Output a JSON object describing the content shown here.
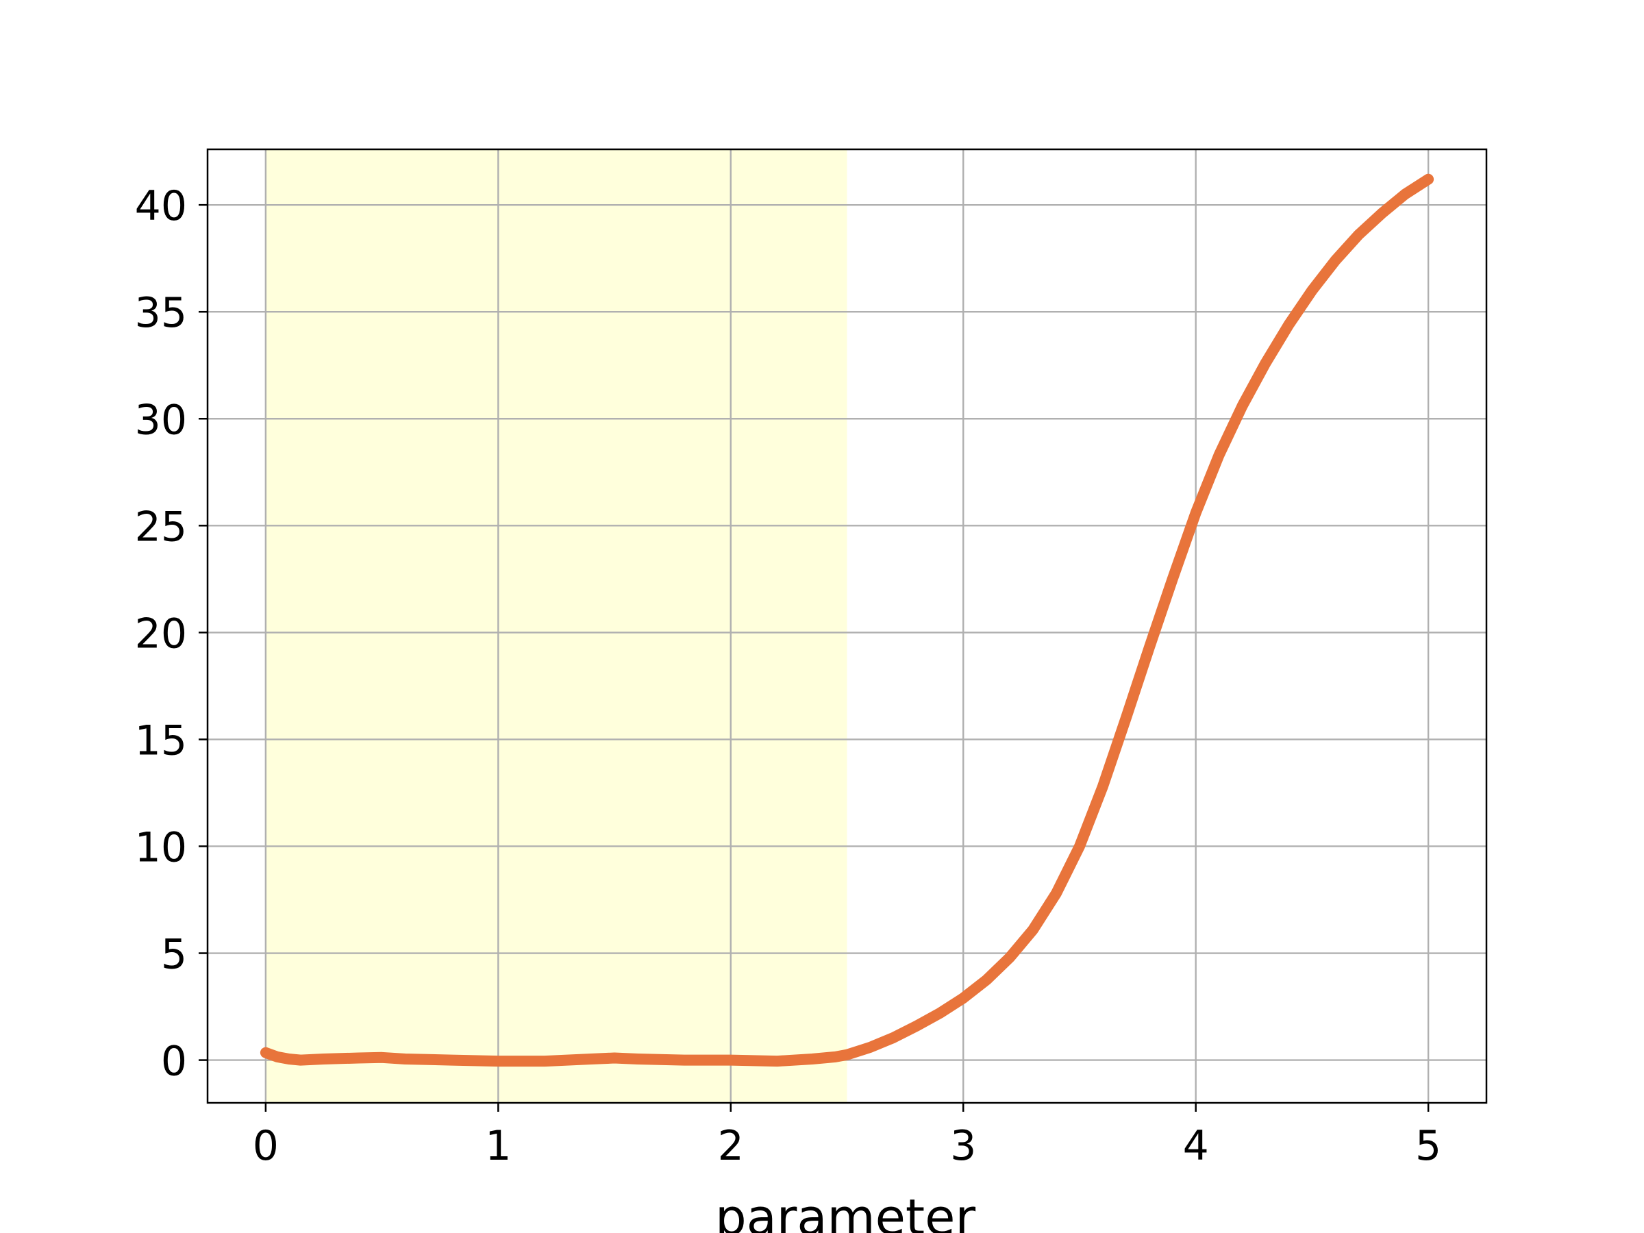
{
  "chart_data": {
    "type": "line",
    "title": "",
    "xlabel": "parameter",
    "ylabel": "",
    "xlim": [
      -0.25,
      5.25
    ],
    "ylim": [
      -2.0,
      42.6
    ],
    "x_ticks": [
      0,
      1,
      2,
      3,
      4,
      5
    ],
    "y_ticks": [
      0,
      5,
      10,
      15,
      20,
      25,
      30,
      35,
      40
    ],
    "grid": true,
    "legend": "none",
    "highlight_region": {
      "x_start": 0,
      "x_end": 2.5,
      "color": "#ffffdc"
    },
    "series": [
      {
        "color": "#e8743b",
        "points": [
          [
            0.0,
            0.35
          ],
          [
            0.05,
            0.15
          ],
          [
            0.1,
            0.05
          ],
          [
            0.15,
            0.0
          ],
          [
            0.25,
            0.05
          ],
          [
            0.4,
            0.1
          ],
          [
            0.5,
            0.12
          ],
          [
            0.6,
            0.05
          ],
          [
            0.8,
            0.0
          ],
          [
            1.0,
            -0.05
          ],
          [
            1.2,
            -0.05
          ],
          [
            1.4,
            0.05
          ],
          [
            1.5,
            0.1
          ],
          [
            1.6,
            0.05
          ],
          [
            1.8,
            0.0
          ],
          [
            2.0,
            0.0
          ],
          [
            2.2,
            -0.05
          ],
          [
            2.35,
            0.05
          ],
          [
            2.45,
            0.15
          ],
          [
            2.5,
            0.25
          ],
          [
            2.6,
            0.6
          ],
          [
            2.7,
            1.05
          ],
          [
            2.8,
            1.6
          ],
          [
            2.9,
            2.2
          ],
          [
            3.0,
            2.9
          ],
          [
            3.1,
            3.75
          ],
          [
            3.2,
            4.8
          ],
          [
            3.3,
            6.1
          ],
          [
            3.4,
            7.8
          ],
          [
            3.5,
            10.0
          ],
          [
            3.6,
            12.8
          ],
          [
            3.7,
            16.0
          ],
          [
            3.8,
            19.3
          ],
          [
            3.9,
            22.5
          ],
          [
            4.0,
            25.6
          ],
          [
            4.1,
            28.3
          ],
          [
            4.2,
            30.6
          ],
          [
            4.3,
            32.6
          ],
          [
            4.4,
            34.4
          ],
          [
            4.5,
            36.0
          ],
          [
            4.6,
            37.4
          ],
          [
            4.7,
            38.6
          ],
          [
            4.8,
            39.6
          ],
          [
            4.9,
            40.5
          ],
          [
            5.0,
            41.2
          ]
        ]
      }
    ]
  }
}
